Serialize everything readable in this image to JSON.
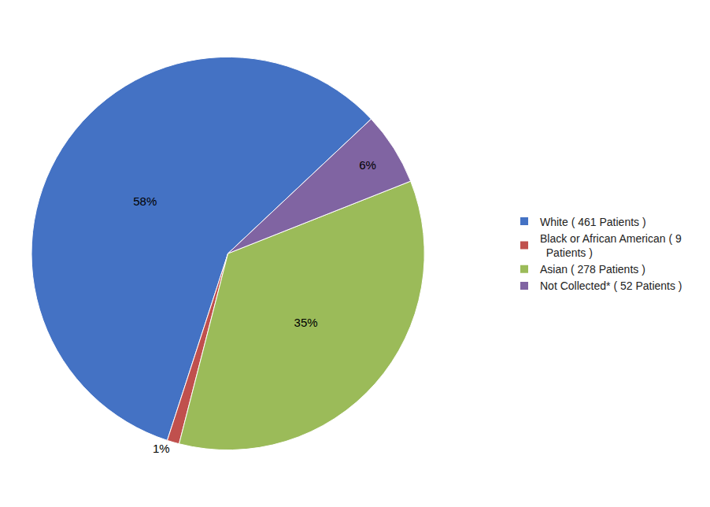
{
  "chart_data": {
    "type": "pie",
    "categories": [
      "White ( 461 Patients )",
      "Black or African American ( 9\n  Patients )",
      "Asian ( 278 Patients )",
      "Not Collected* ( 52 Patients )"
    ],
    "values": [
      58,
      1,
      35,
      6
    ],
    "value_labels": [
      "58%",
      "1%",
      "35%",
      "6%"
    ],
    "colors": [
      "#4472C4",
      "#C0504D",
      "#9BBB59",
      "#8064A2"
    ],
    "data_labels": true,
    "legend": "right"
  }
}
